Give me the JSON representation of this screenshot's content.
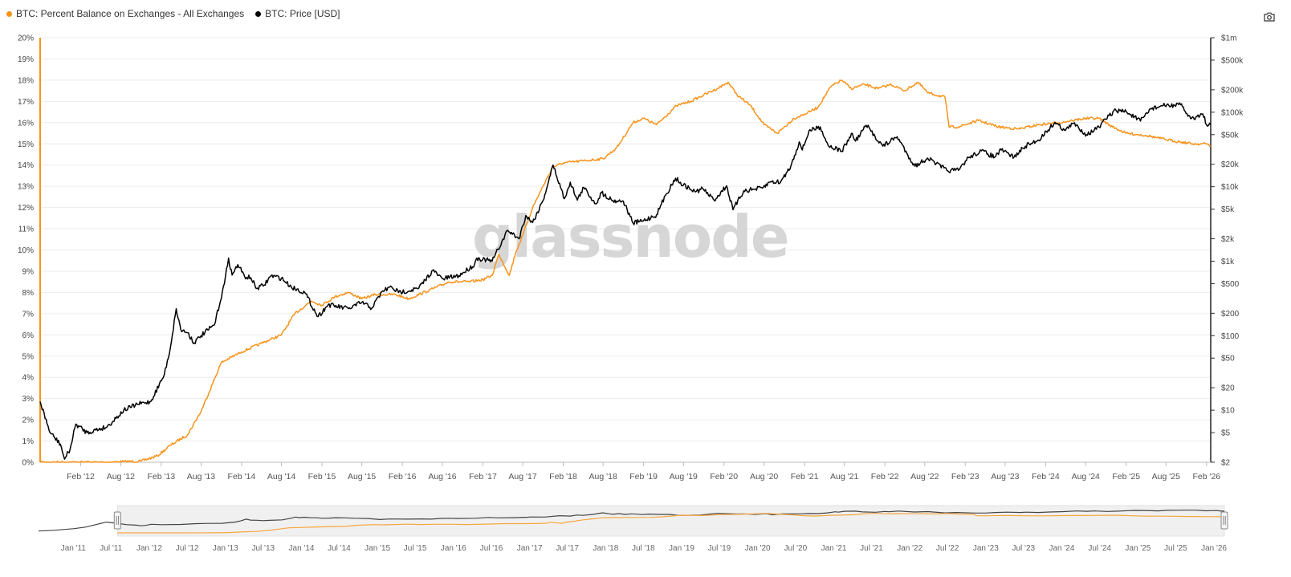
{
  "legend": [
    {
      "label": "BTC: Percent Balance on Exchanges - All Exchanges",
      "color": "#f7931a"
    },
    {
      "label": "BTC: Price [USD]",
      "color": "#000000"
    }
  ],
  "toolbar": {
    "screenshot_icon": "camera-icon"
  },
  "watermark": "glassnode",
  "chart_data": {
    "type": "line",
    "x_ticks": [
      "Feb '12",
      "Aug '12",
      "Feb '13",
      "Aug '13",
      "Feb '14",
      "Aug '14",
      "Feb '15",
      "Aug '15",
      "Feb '16",
      "Aug '16",
      "Feb '17",
      "Aug '17",
      "Feb '18",
      "Aug '18",
      "Feb '19",
      "Aug '19",
      "Feb '20",
      "Aug '20",
      "Feb '21",
      "Aug '21",
      "Feb '22",
      "Aug '22",
      "Feb '23",
      "Aug '23",
      "Feb '24",
      "Aug '24",
      "Feb '25",
      "Aug '25",
      "Feb '26"
    ],
    "y_left_ticks": [
      "0%",
      "1%",
      "2%",
      "3%",
      "4%",
      "5%",
      "6%",
      "7%",
      "8%",
      "9%",
      "10%",
      "11%",
      "12%",
      "13%",
      "14%",
      "15%",
      "16%",
      "17%",
      "18%",
      "19%",
      "20%"
    ],
    "y_left_range": [
      0,
      20
    ],
    "y_right_ticks": [
      "$2",
      "$5",
      "$10",
      "$20",
      "$50",
      "$100",
      "$200",
      "$500",
      "$1k",
      "$2k",
      "$5k",
      "$10k",
      "$20k",
      "$50k",
      "$100k",
      "$200k",
      "$500k",
      "$1m"
    ],
    "y_right_values": [
      2,
      5,
      10,
      20,
      50,
      100,
      200,
      500,
      1000,
      2000,
      5000,
      10000,
      20000,
      50000,
      100000,
      200000,
      500000,
      1000000
    ],
    "y_right_scale": "log",
    "x_range": [
      "2011-08-01",
      "2026-02-20"
    ],
    "grid": true,
    "legend_position": "top-left",
    "series": [
      {
        "name": "BTC: Percent Balance on Exchanges - All Exchanges",
        "color": "#f7931a",
        "axis": "left",
        "points": [
          [
            "2011-08-01",
            0.0
          ],
          [
            "2012-06-01",
            0.0
          ],
          [
            "2012-11-01",
            0.05
          ],
          [
            "2013-01-15",
            0.3
          ],
          [
            "2013-03-15",
            0.8
          ],
          [
            "2013-06-01",
            1.3
          ],
          [
            "2013-08-01",
            2.4
          ],
          [
            "2013-11-01",
            4.7
          ],
          [
            "2014-02-01",
            5.2
          ],
          [
            "2014-05-01",
            5.6
          ],
          [
            "2014-08-01",
            6.0
          ],
          [
            "2014-10-01",
            7.0
          ],
          [
            "2014-12-15",
            7.6
          ],
          [
            "2015-02-01",
            7.4
          ],
          [
            "2015-04-01",
            7.8
          ],
          [
            "2015-06-01",
            8.0
          ],
          [
            "2015-08-01",
            7.7
          ],
          [
            "2015-10-01",
            7.9
          ],
          [
            "2016-01-01",
            7.9
          ],
          [
            "2016-03-01",
            7.7
          ],
          [
            "2016-06-01",
            8.1
          ],
          [
            "2016-09-01",
            8.5
          ],
          [
            "2016-12-01",
            8.5
          ],
          [
            "2017-02-01",
            8.6
          ],
          [
            "2017-03-15",
            8.8
          ],
          [
            "2017-04-15",
            9.8
          ],
          [
            "2017-06-01",
            8.8
          ],
          [
            "2017-07-01",
            9.9
          ],
          [
            "2017-08-01",
            10.7
          ],
          [
            "2017-09-15",
            12.0
          ],
          [
            "2017-11-01",
            13.0
          ],
          [
            "2017-12-15",
            13.9
          ],
          [
            "2018-02-01",
            14.1
          ],
          [
            "2018-05-01",
            14.2
          ],
          [
            "2018-08-01",
            14.3
          ],
          [
            "2018-10-01",
            14.8
          ],
          [
            "2018-12-15",
            16.0
          ],
          [
            "2019-02-01",
            16.2
          ],
          [
            "2019-04-01",
            15.9
          ],
          [
            "2019-07-01",
            16.8
          ],
          [
            "2019-09-01",
            17.0
          ],
          [
            "2019-11-01",
            17.3
          ],
          [
            "2020-01-01",
            17.6
          ],
          [
            "2020-02-20",
            17.9
          ],
          [
            "2020-04-01",
            17.3
          ],
          [
            "2020-06-01",
            16.8
          ],
          [
            "2020-08-01",
            15.9
          ],
          [
            "2020-10-01",
            15.5
          ],
          [
            "2020-12-15",
            16.2
          ],
          [
            "2021-02-01",
            16.4
          ],
          [
            "2021-04-01",
            16.7
          ],
          [
            "2021-06-01",
            17.7
          ],
          [
            "2021-07-20",
            18.0
          ],
          [
            "2021-09-01",
            17.6
          ],
          [
            "2021-11-01",
            17.8
          ],
          [
            "2022-01-01",
            17.6
          ],
          [
            "2022-03-01",
            17.8
          ],
          [
            "2022-05-01",
            17.5
          ],
          [
            "2022-07-01",
            17.9
          ],
          [
            "2022-08-15",
            17.4
          ],
          [
            "2022-11-01",
            17.2
          ],
          [
            "2022-11-20",
            15.8
          ],
          [
            "2023-01-01",
            15.8
          ],
          [
            "2023-04-01",
            16.1
          ],
          [
            "2023-07-01",
            15.8
          ],
          [
            "2023-10-01",
            15.7
          ],
          [
            "2024-01-01",
            15.9
          ],
          [
            "2024-04-01",
            16.0
          ],
          [
            "2024-06-01",
            16.1
          ],
          [
            "2024-08-01",
            16.2
          ],
          [
            "2024-10-01",
            16.2
          ],
          [
            "2024-12-01",
            15.8
          ],
          [
            "2025-02-01",
            15.5
          ],
          [
            "2025-05-01",
            15.4
          ],
          [
            "2025-08-01",
            15.2
          ],
          [
            "2025-10-01",
            15.1
          ],
          [
            "2025-12-01",
            15.0
          ],
          [
            "2026-02-01",
            15.0
          ],
          [
            "2026-02-20",
            14.9
          ]
        ]
      },
      {
        "name": "BTC: Price [USD]",
        "color": "#000000",
        "axis": "right",
        "points": [
          [
            "2011-08-01",
            13
          ],
          [
            "2011-09-15",
            5
          ],
          [
            "2011-11-01",
            3.5
          ],
          [
            "2011-11-20",
            2.2
          ],
          [
            "2011-12-15",
            3
          ],
          [
            "2012-01-10",
            6.5
          ],
          [
            "2012-03-01",
            5
          ],
          [
            "2012-06-01",
            6
          ],
          [
            "2012-08-15",
            10
          ],
          [
            "2012-10-15",
            12
          ],
          [
            "2012-12-15",
            13
          ],
          [
            "2013-02-15",
            30
          ],
          [
            "2013-03-15",
            70
          ],
          [
            "2013-04-10",
            230
          ],
          [
            "2013-05-01",
            120
          ],
          [
            "2013-06-01",
            110
          ],
          [
            "2013-07-01",
            80
          ],
          [
            "2013-08-01",
            100
          ],
          [
            "2013-10-01",
            140
          ],
          [
            "2013-11-15",
            500
          ],
          [
            "2013-12-04",
            1100
          ],
          [
            "2013-12-20",
            650
          ],
          [
            "2014-01-15",
            900
          ],
          [
            "2014-02-15",
            620
          ],
          [
            "2014-03-15",
            600
          ],
          [
            "2014-04-10",
            430
          ],
          [
            "2014-05-15",
            480
          ],
          [
            "2014-06-15",
            640
          ],
          [
            "2014-08-01",
            590
          ],
          [
            "2014-09-15",
            450
          ],
          [
            "2014-11-15",
            380
          ],
          [
            "2015-01-14",
            180
          ],
          [
            "2015-03-01",
            260
          ],
          [
            "2015-06-01",
            230
          ],
          [
            "2015-08-01",
            280
          ],
          [
            "2015-09-15",
            235
          ],
          [
            "2015-11-04",
            400
          ],
          [
            "2015-12-15",
            450
          ],
          [
            "2016-01-15",
            380
          ],
          [
            "2016-04-15",
            430
          ],
          [
            "2016-06-18",
            750
          ],
          [
            "2016-08-01",
            580
          ],
          [
            "2016-10-15",
            640
          ],
          [
            "2016-12-25",
            900
          ],
          [
            "2017-01-05",
            1100
          ],
          [
            "2017-03-15",
            1000
          ],
          [
            "2017-05-25",
            2600
          ],
          [
            "2017-07-15",
            2000
          ],
          [
            "2017-08-15",
            4100
          ],
          [
            "2017-09-15",
            3300
          ],
          [
            "2017-11-01",
            6500
          ],
          [
            "2017-12-17",
            19500
          ],
          [
            "2018-02-06",
            6900
          ],
          [
            "2018-03-05",
            11500
          ],
          [
            "2018-04-06",
            6600
          ],
          [
            "2018-05-05",
            9800
          ],
          [
            "2018-06-28",
            5900
          ],
          [
            "2018-07-25",
            8300
          ],
          [
            "2018-09-15",
            6500
          ],
          [
            "2018-11-01",
            6400
          ],
          [
            "2018-12-15",
            3250
          ],
          [
            "2019-02-01",
            3500
          ],
          [
            "2019-04-01",
            4200
          ],
          [
            "2019-05-15",
            8000
          ],
          [
            "2019-06-26",
            13000
          ],
          [
            "2019-08-01",
            10500
          ],
          [
            "2019-09-25",
            8500
          ],
          [
            "2019-10-27",
            9500
          ],
          [
            "2019-12-18",
            6600
          ],
          [
            "2020-02-13",
            10300
          ],
          [
            "2020-03-13",
            4900
          ],
          [
            "2020-05-01",
            8800
          ],
          [
            "2020-07-25",
            9600
          ],
          [
            "2020-09-01",
            11700
          ],
          [
            "2020-10-15",
            11500
          ],
          [
            "2020-12-01",
            19000
          ],
          [
            "2021-01-08",
            40000
          ],
          [
            "2021-01-22",
            31000
          ],
          [
            "2021-02-21",
            56000
          ],
          [
            "2021-04-14",
            63500
          ],
          [
            "2021-05-19",
            36000
          ],
          [
            "2021-07-20",
            30000
          ],
          [
            "2021-09-06",
            52000
          ],
          [
            "2021-09-21",
            41000
          ],
          [
            "2021-11-08",
            67000
          ],
          [
            "2022-01-23",
            35000
          ],
          [
            "2022-03-29",
            47000
          ],
          [
            "2022-05-12",
            28000
          ],
          [
            "2022-06-18",
            18800
          ],
          [
            "2022-08-14",
            24300
          ],
          [
            "2022-11-10",
            16500
          ],
          [
            "2023-01-01",
            16600
          ],
          [
            "2023-02-15",
            24500
          ],
          [
            "2023-04-15",
            30300
          ],
          [
            "2023-06-15",
            25000
          ],
          [
            "2023-07-15",
            31000
          ],
          [
            "2023-09-11",
            25000
          ],
          [
            "2023-11-01",
            35000
          ],
          [
            "2023-12-31",
            42300
          ],
          [
            "2024-03-14",
            73000
          ],
          [
            "2024-05-01",
            57000
          ],
          [
            "2024-06-07",
            71000
          ],
          [
            "2024-08-05",
            50000
          ],
          [
            "2024-10-01",
            63000
          ],
          [
            "2024-11-15",
            90000
          ],
          [
            "2024-12-17",
            106000
          ],
          [
            "2025-02-01",
            102000
          ],
          [
            "2025-04-07",
            76000
          ],
          [
            "2025-05-22",
            111000
          ],
          [
            "2025-07-14",
            122000
          ],
          [
            "2025-08-14",
            123000
          ],
          [
            "2025-10-06",
            126000
          ],
          [
            "2025-11-21",
            82000
          ],
          [
            "2025-12-20",
            88000
          ],
          [
            "2026-01-15",
            95000
          ],
          [
            "2026-02-05",
            65000
          ],
          [
            "2026-02-20",
            68000
          ]
        ]
      }
    ],
    "navigator": {
      "x_ticks": [
        "Jan '11",
        "Jul '11",
        "Jan '12",
        "Jul '12",
        "Jan '13",
        "Jul '13",
        "Jan '14",
        "Jul '14",
        "Jan '15",
        "Jul '15",
        "Jan '16",
        "Jul '16",
        "Jan '17",
        "Jul '17",
        "Jan '18",
        "Jul '18",
        "Jan '19",
        "Jul '19",
        "Jan '20",
        "Jul '20",
        "Jan '21",
        "Jul '21",
        "Jan '22",
        "Jul '22",
        "Jan '23",
        "Jul '23",
        "Jan '24",
        "Jul '24",
        "Jan '25",
        "Jul '25",
        "Jan '26"
      ]
    }
  }
}
